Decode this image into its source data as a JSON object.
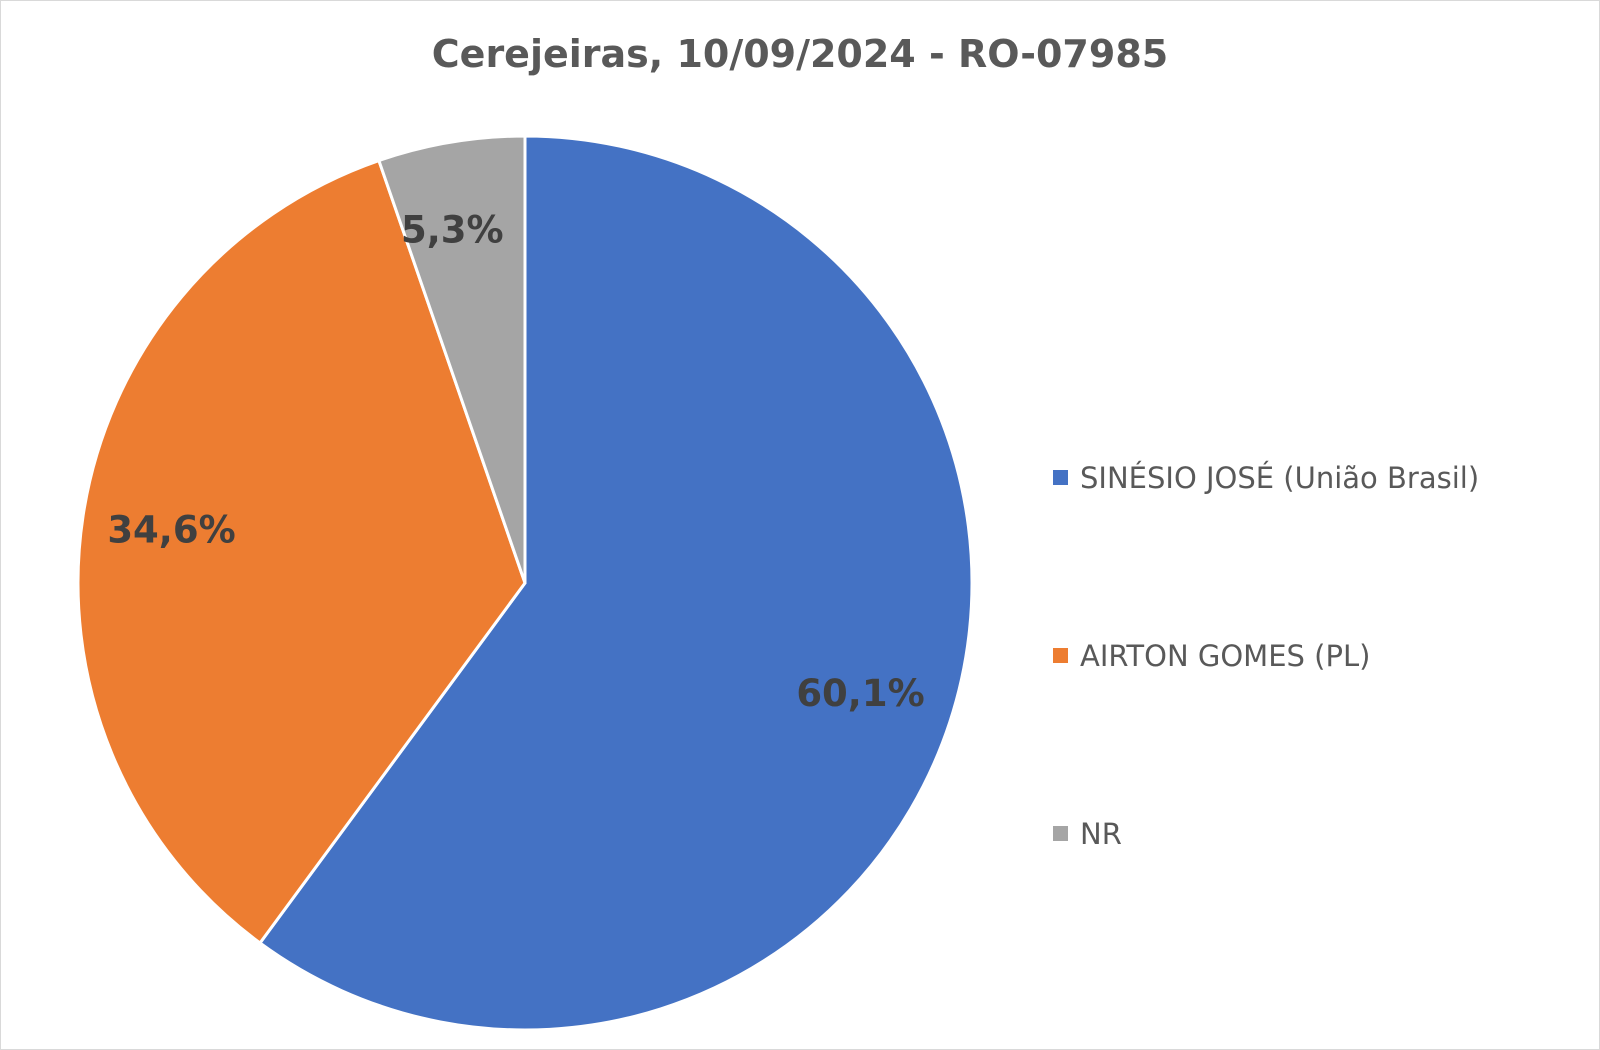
{
  "chart_data": {
    "type": "pie",
    "title": "Cerejeiras, 10/09/2024 - RO-07985",
    "slices": [
      {
        "label": "SINÉSIO JOSÉ (União Brasil)",
        "value": 60.1,
        "data_label": "60,1%",
        "color": "#4472C4"
      },
      {
        "label": "AIRTON GOMES (PL)",
        "value": 34.6,
        "data_label": "34,6%",
        "color": "#ED7D31"
      },
      {
        "label": "NR",
        "value": 5.3,
        "data_label": "5,3%",
        "color": "#A5A5A5"
      }
    ],
    "start_angle": "12 o'clock",
    "direction": "clockwise",
    "legend_position": "right"
  }
}
